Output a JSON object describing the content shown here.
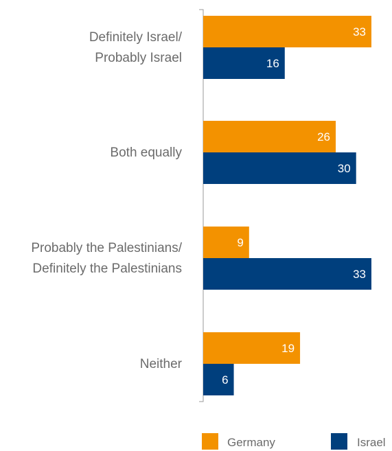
{
  "chart_data": {
    "type": "bar",
    "orientation": "horizontal",
    "categories": [
      [
        "Definitely Israel/",
        "Probably Israel"
      ],
      [
        "Both equally"
      ],
      [
        "Probably the Palestinians/",
        "Definitely the Palestinians"
      ],
      [
        "Neither"
      ]
    ],
    "series": [
      {
        "name": "Germany",
        "color": "#f39200",
        "values": [
          33,
          26,
          9,
          19
        ]
      },
      {
        "name": "Israel",
        "color": "#003f7d",
        "values": [
          16,
          30,
          33,
          6
        ]
      }
    ],
    "xlim": [
      0,
      33
    ],
    "grid": false,
    "legend_position": "bottom-right",
    "data_labels": true
  }
}
